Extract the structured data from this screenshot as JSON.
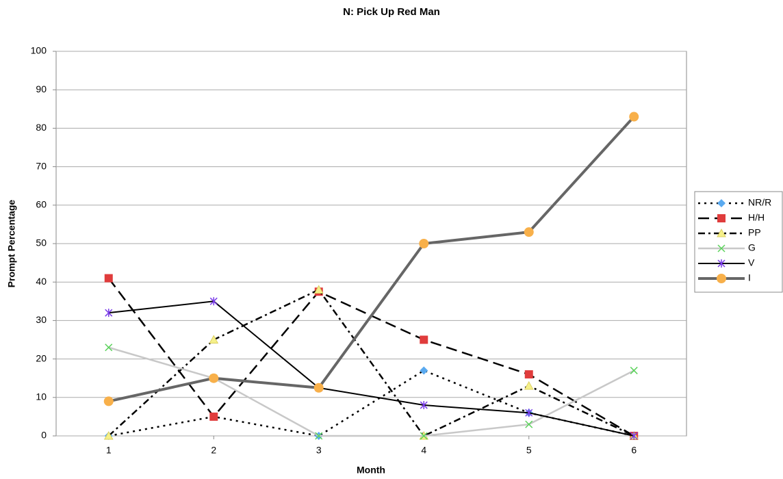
{
  "chart_data": {
    "type": "line",
    "title": "N: Pick Up Red Man",
    "x_label": "Month",
    "y_label": "Prompt Percentage",
    "categories": [
      "1",
      "2",
      "3",
      "4",
      "5",
      "6"
    ],
    "ylim": [
      0,
      100
    ],
    "yticks": [
      0,
      10,
      20,
      30,
      40,
      50,
      60,
      70,
      80,
      90,
      100
    ],
    "grid": true,
    "legend": "right",
    "series": [
      {
        "name": "NR/R",
        "color": "#000000",
        "marker_color": "#5aaaf0",
        "marker": "diamond",
        "line_style": "dotted",
        "width": 2.5,
        "values": [
          0,
          5,
          0,
          17,
          6,
          0
        ]
      },
      {
        "name": "H/H",
        "color": "#000000",
        "marker_color": "#e03c3c",
        "marker": "square",
        "line_style": "long-dash",
        "width": 2.5,
        "values": [
          41,
          5,
          37.5,
          25,
          16,
          0
        ]
      },
      {
        "name": "PP",
        "color": "#000000",
        "marker_color": "#f5f08a",
        "marker": "triangle",
        "line_style": "dash-dot",
        "width": 2.5,
        "values": [
          0,
          25,
          38,
          0,
          13,
          0
        ]
      },
      {
        "name": "G",
        "color": "#c8c8c8",
        "marker_color": "#5ad25a",
        "marker": "x",
        "line_style": "solid",
        "width": 2.5,
        "values": [
          23,
          15,
          0,
          0,
          3,
          17
        ]
      },
      {
        "name": "V",
        "color": "#000000",
        "marker_color": "#7a3ce8",
        "marker": "star",
        "line_style": "solid",
        "width": 2,
        "values": [
          32,
          35,
          12.5,
          8,
          6,
          0
        ]
      },
      {
        "name": "I",
        "color": "#666666",
        "marker_color": "#f8b04a",
        "marker": "circle",
        "line_style": "solid",
        "width": 4,
        "values": [
          9,
          15,
          12.5,
          50,
          53,
          83
        ]
      }
    ]
  }
}
